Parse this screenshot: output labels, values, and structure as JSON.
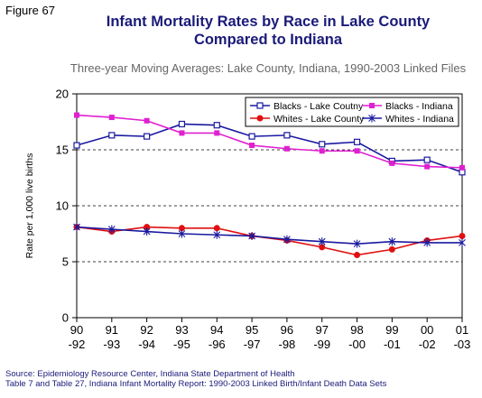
{
  "figure_label": "Figure 67",
  "source_lines": [
    "Source: Epidemiology Resource Center, Indiana State Department of Health",
    "Table 7 and Table 27, Indiana Infant Mortality Report: 1990-2003 Linked Birth/Infant Death Data Sets"
  ],
  "chart_data": {
    "type": "line",
    "title_lines": [
      "Infant Mortality Rates by Race in Lake County",
      "Compared to Indiana"
    ],
    "subtitle": "Three-year Moving Averages: Lake County, Indiana, 1990-2003 Linked Files",
    "xlabel": "",
    "ylabel": "Rate per 1,000 live births",
    "categories": [
      [
        "90",
        "-92"
      ],
      [
        "91",
        "-93"
      ],
      [
        "92",
        "-94"
      ],
      [
        "93",
        "-95"
      ],
      [
        "94",
        "-96"
      ],
      [
        "95",
        "-97"
      ],
      [
        "96",
        "-98"
      ],
      [
        "97",
        "-99"
      ],
      [
        "98",
        "-00"
      ],
      [
        "99",
        "-01"
      ],
      [
        "00",
        "-02"
      ],
      [
        "01",
        "-03"
      ]
    ],
    "ylim": [
      0,
      20
    ],
    "yticks": [
      0,
      5,
      10,
      15,
      20
    ],
    "grid": "dashed horizontal at 5, 10, 15",
    "legend_position": "top-right",
    "series": [
      {
        "name": "Blacks - Lake Coutny",
        "color": "#1a1aa0",
        "marker": "square-open",
        "values": [
          15.4,
          16.3,
          16.2,
          17.3,
          17.2,
          16.2,
          16.3,
          15.5,
          15.7,
          14.0,
          14.1,
          13.0
        ]
      },
      {
        "name": "Blacks - Indiana",
        "color": "#e020d0",
        "marker": "square-filled",
        "values": [
          18.1,
          17.9,
          17.6,
          16.5,
          16.5,
          15.4,
          15.1,
          14.9,
          14.9,
          13.8,
          13.5,
          13.4
        ]
      },
      {
        "name": "Whites - Lake County",
        "color": "#e01010",
        "marker": "circle-filled",
        "values": [
          8.1,
          7.7,
          8.1,
          8.0,
          8.0,
          7.3,
          6.9,
          6.3,
          5.6,
          6.1,
          6.9,
          7.3
        ]
      },
      {
        "name": "Whites - Indiana",
        "color": "#1a1aa0",
        "marker": "star",
        "values": [
          8.1,
          7.9,
          7.7,
          7.5,
          7.4,
          7.3,
          7.0,
          6.8,
          6.6,
          6.8,
          6.7,
          6.7
        ]
      }
    ]
  }
}
